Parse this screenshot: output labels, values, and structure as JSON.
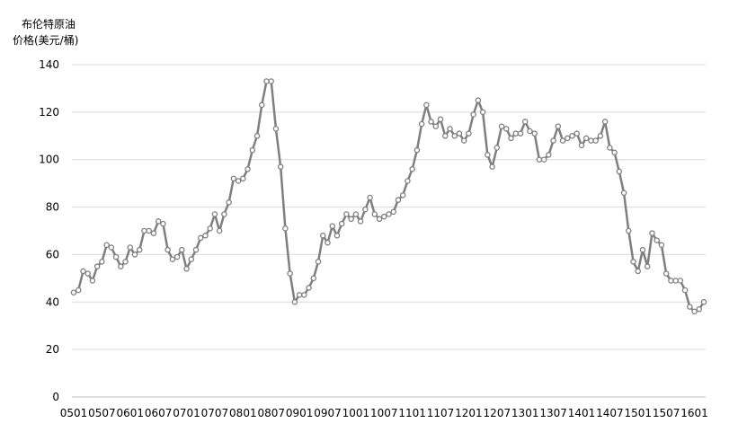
{
  "chart_data": {
    "type": "line",
    "ylabel_line1": "布伦特原油",
    "ylabel_line2": "价格(美元/桶)",
    "ylim": [
      0,
      140
    ],
    "yticks": [
      0,
      20,
      40,
      60,
      80,
      100,
      120,
      140
    ],
    "x_tick_labels": [
      "0501",
      "0507",
      "0601",
      "0607",
      "0701",
      "0707",
      "0801",
      "0807",
      "0901",
      "0907",
      "1001",
      "1007",
      "1101",
      "1107",
      "1201",
      "1207",
      "1301",
      "1307",
      "1401",
      "1407",
      "1501",
      "1507",
      "1601"
    ],
    "grid": "horizontal",
    "series": [
      {
        "values": [
          44,
          45,
          53,
          52,
          49,
          55,
          57,
          64,
          63,
          59,
          55,
          57,
          63,
          60,
          62,
          70,
          70,
          69,
          74,
          73,
          62,
          58,
          59,
          62,
          54,
          58,
          62,
          67,
          68,
          71,
          77,
          70,
          77,
          82,
          92,
          91,
          92,
          96,
          104,
          110,
          123,
          133,
          133,
          113,
          97,
          71,
          52,
          40,
          43,
          43,
          46,
          50,
          57,
          68,
          65,
          72,
          68,
          73,
          77,
          75,
          77,
          74,
          79,
          84,
          77,
          75,
          76,
          77,
          78,
          83,
          85,
          91,
          96,
          104,
          115,
          123,
          116,
          114,
          117,
          110,
          113,
          110,
          111,
          108,
          111,
          119,
          125,
          120,
          102,
          97,
          105,
          114,
          113,
          109,
          111,
          111,
          116,
          112,
          111,
          100,
          100,
          102,
          108,
          114,
          108,
          109,
          110,
          111,
          106,
          109,
          108,
          108,
          110,
          116,
          105,
          103,
          95,
          86,
          70,
          57,
          53,
          62,
          55,
          69,
          66,
          64,
          52,
          49,
          49,
          49,
          45,
          38,
          36,
          37,
          40
        ]
      }
    ]
  }
}
